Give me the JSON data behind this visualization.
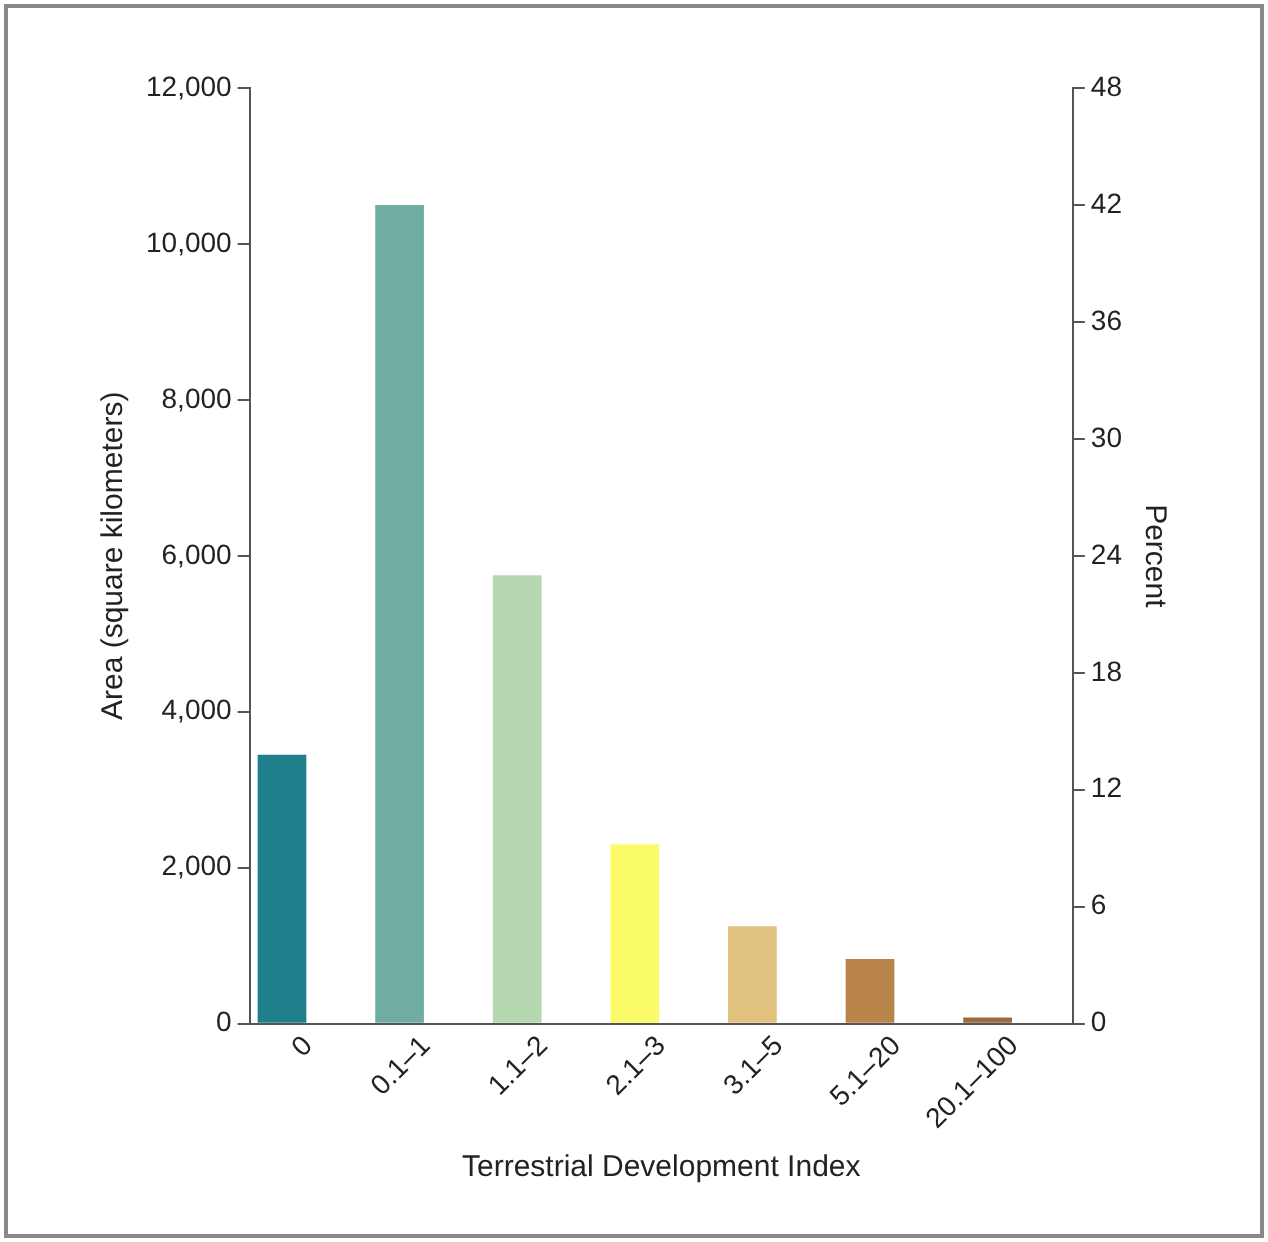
{
  "chart_data": {
    "type": "bar",
    "xlabel": "Terrestrial Development Index",
    "ylabel": "Area (square kilometers)",
    "y2label": "Percent",
    "categories": [
      "0",
      "0.1–1",
      "1.1–2",
      "2.1–3",
      "3.1–5",
      "5.1–20",
      "20.1–100"
    ],
    "values": [
      3450,
      10500,
      5750,
      2300,
      1250,
      830,
      80
    ],
    "colors": [
      "#1f7f8c",
      "#6fada3",
      "#b5d8b0",
      "#fbfb6a",
      "#e0c27e",
      "#b9844a",
      "#9b6a3e"
    ],
    "ylim": [
      0,
      12000
    ],
    "yticks": [
      0,
      {
        "value": 2000,
        "label": "2,000"
      },
      {
        "value": 4000,
        "label": "4,000"
      },
      {
        "value": 6000,
        "label": "6,000"
      },
      {
        "value": 8000,
        "label": "8,000"
      },
      {
        "value": 10000,
        "label": "10,000"
      },
      {
        "value": 12000,
        "label": "12,000"
      }
    ],
    "y2lim": [
      0,
      48
    ],
    "y2ticks": [
      0,
      6,
      12,
      18,
      24,
      30,
      36,
      42,
      48
    ],
    "grid": false,
    "legend": false
  }
}
